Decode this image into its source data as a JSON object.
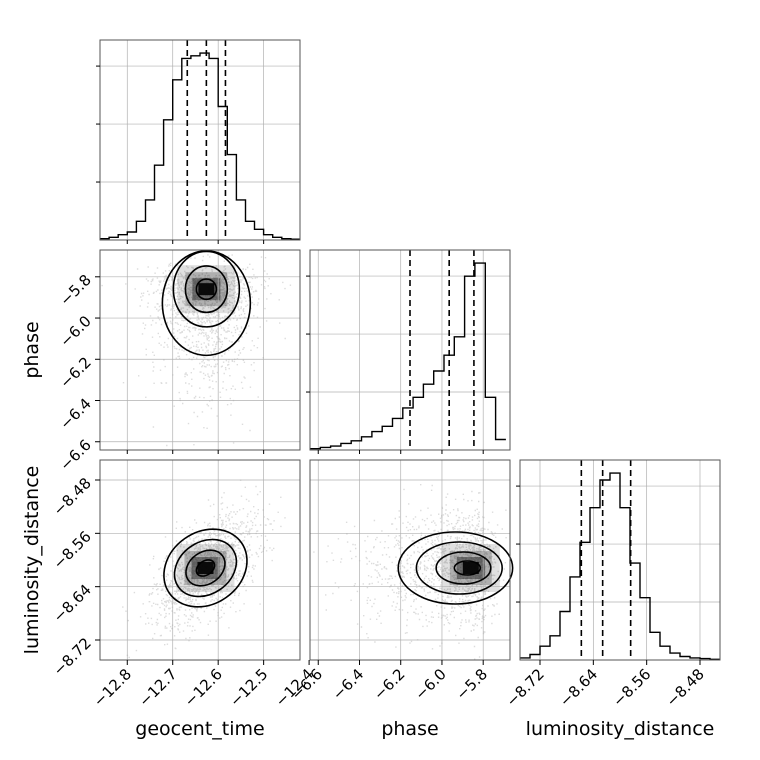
{
  "chart_data": {
    "type": "corner",
    "parameters": [
      "geocent_time",
      "phase",
      "luminosity_distance"
    ],
    "axes": {
      "geocent_time": {
        "label": "geocent_time",
        "range": [
          -12.86,
          -12.42
        ],
        "ticks": [
          -12.8,
          -12.7,
          -12.6,
          -12.5,
          -12.4
        ],
        "tick_labels": [
          "−12.8",
          "−12.7",
          "−12.6",
          "−12.5",
          "−12.4"
        ]
      },
      "phase": {
        "label": "phase",
        "range": [
          -6.64,
          -5.67
        ],
        "ticks": [
          -6.6,
          -6.4,
          -6.2,
          -6.0,
          -5.8
        ],
        "tick_labels": [
          "−6.6",
          "−6.4",
          "−6.2",
          "−6.0",
          "−5.8"
        ]
      },
      "luminosity_distance": {
        "label": "luminosity_distance",
        "range": [
          -8.75,
          -8.45
        ],
        "ticks": [
          -8.72,
          -8.64,
          -8.56,
          -8.48
        ],
        "tick_labels": [
          "−8.72",
          "−8.64",
          "−8.56",
          "−8.48"
        ]
      }
    },
    "histograms": {
      "geocent_time": {
        "bin_edges": [
          -12.86,
          -12.84,
          -12.82,
          -12.8,
          -12.78,
          -12.76,
          -12.74,
          -12.72,
          -12.7,
          -12.68,
          -12.66,
          -12.64,
          -12.62,
          -12.6,
          -12.58,
          -12.56,
          -12.54,
          -12.52,
          -12.5,
          -12.48,
          -12.46,
          -12.44,
          -12.42
        ],
        "counts": [
          0.5,
          1,
          2,
          3,
          7,
          15,
          28,
          45,
          60,
          68,
          69,
          70,
          68,
          50,
          32,
          15,
          7,
          4,
          2,
          1,
          0.5,
          0.3
        ],
        "quantiles": [
          -12.668,
          -12.626,
          -12.584
        ]
      },
      "phase": {
        "bin_edges": [
          -6.64,
          -6.59,
          -6.54,
          -6.49,
          -6.44,
          -6.39,
          -6.34,
          -6.29,
          -6.24,
          -6.19,
          -6.14,
          -6.09,
          -6.04,
          -5.99,
          -5.94,
          -5.89,
          -5.84,
          -5.79,
          -5.74,
          -5.69
        ],
        "counts": [
          0.5,
          1,
          1.5,
          2.5,
          3.5,
          5,
          7,
          9,
          12,
          16,
          20,
          25,
          30,
          36,
          43,
          66,
          71,
          20,
          4
        ],
        "quantiles": [
          -6.155,
          -5.965,
          -5.845
        ]
      },
      "luminosity_distance": {
        "bin_edges": [
          -8.75,
          -8.735,
          -8.72,
          -8.705,
          -8.69,
          -8.675,
          -8.66,
          -8.645,
          -8.63,
          -8.615,
          -8.6,
          -8.585,
          -8.57,
          -8.555,
          -8.54,
          -8.525,
          -8.51,
          -8.495,
          -8.48,
          -8.465,
          -8.45
        ],
        "counts": [
          0.3,
          0.8,
          2,
          3.5,
          7,
          12,
          17,
          22,
          26,
          27,
          22,
          14,
          9,
          4,
          2,
          1,
          0.5,
          0.3,
          0.2,
          0.1
        ],
        "quantiles": [
          -8.658,
          -8.626,
          -8.584
        ]
      }
    },
    "scatter_2d": [
      {
        "x_param": "geocent_time",
        "y_param": "phase",
        "peak": [
          -12.626,
          -5.86
        ],
        "correlation": 0.1
      },
      {
        "x_param": "geocent_time",
        "y_param": "luminosity_distance",
        "peak": [
          -12.628,
          -8.612
        ],
        "correlation": 0.55
      },
      {
        "x_param": "phase",
        "y_param": "luminosity_distance",
        "peak": [
          -5.86,
          -8.612
        ],
        "correlation": 0.0
      }
    ],
    "grid": true,
    "colors": {
      "line": "#000000",
      "grid": "#b0b0b0",
      "points": "#9a9a9a",
      "density": "#000000"
    }
  }
}
